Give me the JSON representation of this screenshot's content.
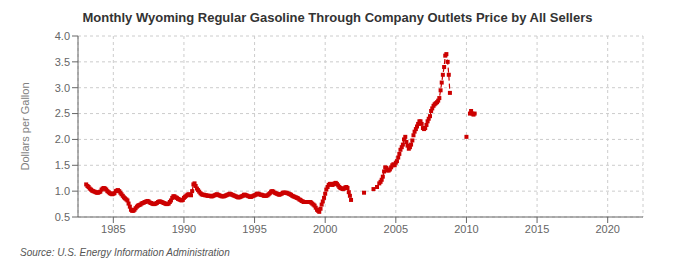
{
  "chart_data": {
    "type": "line",
    "title": "Monthly Wyoming Regular Gasoline Through Company Outlets Price by All Sellers",
    "y_label": "Dollars per Gallon",
    "annotations": [
      "Source: U.S. Energy Information Administration"
    ],
    "color": "#CC0000",
    "line_style": "dashed",
    "marker": "square",
    "grid": true,
    "xlim": [
      1982.5,
      2022.5
    ],
    "xticks": [
      1985,
      1990,
      1995,
      2000,
      2005,
      2010,
      2015,
      2020
    ],
    "ylim": [
      0.5,
      4.0
    ],
    "yticks": [
      0.5,
      {
        "value": 1.0,
        "label": "1.0"
      },
      1.5,
      {
        "value": 2.0,
        "label": "2.0"
      },
      2.5,
      {
        "value": 3.0,
        "label": "3.0"
      },
      3.5,
      {
        "value": 4.0,
        "label": "4.0"
      }
    ],
    "x": [
      1983.08,
      1983.17,
      1983.25,
      1983.33,
      1983.42,
      1983.5,
      1983.58,
      1983.67,
      1983.75,
      1983.83,
      1983.92,
      1984.0,
      1984.08,
      1984.17,
      1984.25,
      1984.33,
      1984.42,
      1984.5,
      1984.58,
      1984.67,
      1984.75,
      1984.83,
      1984.92,
      1985.0,
      1985.08,
      1985.17,
      1985.25,
      1985.33,
      1985.42,
      1985.5,
      1985.58,
      1985.67,
      1985.75,
      1985.83,
      1985.92,
      1986.0,
      1986.08,
      1986.17,
      1986.25,
      1986.33,
      1986.42,
      1986.5,
      1986.58,
      1986.67,
      1986.75,
      1986.83,
      1986.92,
      1987.0,
      1987.08,
      1987.17,
      1987.25,
      1987.33,
      1987.42,
      1987.5,
      1987.58,
      1987.67,
      1987.75,
      1987.83,
      1987.92,
      1988.0,
      1988.08,
      1988.17,
      1988.25,
      1988.33,
      1988.42,
      1988.5,
      1988.58,
      1988.67,
      1988.75,
      1988.83,
      1988.92,
      1989.0,
      1989.08,
      1989.17,
      1989.25,
      1989.33,
      1989.42,
      1989.5,
      1989.58,
      1989.67,
      1989.75,
      1989.83,
      1989.92,
      1990.0,
      1990.08,
      1990.17,
      1990.25,
      1990.33,
      1990.42,
      1990.5,
      1990.58,
      1990.67,
      1990.75,
      1990.83,
      1990.92,
      1991.0,
      1991.08,
      1991.17,
      1991.25,
      1991.33,
      1991.42,
      1991.5,
      1991.58,
      1991.67,
      1991.75,
      1991.83,
      1991.92,
      1992.0,
      1992.08,
      1992.17,
      1992.25,
      1992.33,
      1992.42,
      1992.5,
      1992.58,
      1992.67,
      1992.75,
      1992.83,
      1992.92,
      1993.0,
      1993.08,
      1993.17,
      1993.25,
      1993.33,
      1993.42,
      1993.5,
      1993.58,
      1993.67,
      1993.75,
      1993.83,
      1993.92,
      1994.0,
      1994.08,
      1994.17,
      1994.25,
      1994.33,
      1994.42,
      1994.5,
      1994.58,
      1994.67,
      1994.75,
      1994.83,
      1994.92,
      1995.0,
      1995.08,
      1995.17,
      1995.25,
      1995.33,
      1995.42,
      1995.5,
      1995.58,
      1995.67,
      1995.75,
      1995.83,
      1995.92,
      1996.0,
      1996.08,
      1996.17,
      1996.25,
      1996.33,
      1996.42,
      1996.5,
      1996.58,
      1996.67,
      1996.75,
      1996.83,
      1996.92,
      1997.0,
      1997.08,
      1997.17,
      1997.25,
      1997.33,
      1997.42,
      1997.5,
      1997.58,
      1997.67,
      1997.75,
      1997.83,
      1997.92,
      1998.0,
      1998.08,
      1998.17,
      1998.25,
      1998.33,
      1998.42,
      1998.5,
      1998.58,
      1998.67,
      1998.75,
      1998.83,
      1998.92,
      1999.0,
      1999.08,
      1999.17,
      1999.25,
      1999.33,
      1999.42,
      1999.5,
      1999.58,
      1999.67,
      1999.75,
      1999.83,
      1999.92,
      2000.0,
      2000.08,
      2000.17,
      2000.25,
      2000.33,
      2000.42,
      2000.5,
      2000.58,
      2000.67,
      2000.75,
      2000.83,
      2000.92,
      2001.0,
      2001.08,
      2001.17,
      2001.25,
      2001.33,
      2001.42,
      2001.5,
      2001.58,
      2001.67,
      2001.75,
      2001.83,
      2001.92,
      2002.0,
      2002.08,
      2002.17,
      2002.25,
      2002.33,
      2002.42,
      2002.5,
      2002.58,
      2002.67,
      2002.75,
      2002.83,
      2002.92,
      2003.0,
      2003.08,
      2003.17,
      2003.25,
      2003.33,
      2003.42,
      2003.5,
      2003.58,
      2003.67,
      2003.75,
      2003.83,
      2003.92,
      2004.0,
      2004.08,
      2004.17,
      2004.25,
      2004.33,
      2004.42,
      2004.5,
      2004.58,
      2004.67,
      2004.75,
      2004.83,
      2004.92,
      2005.0,
      2005.08,
      2005.17,
      2005.25,
      2005.33,
      2005.42,
      2005.5,
      2005.58,
      2005.67,
      2005.75,
      2005.83,
      2005.92,
      2006.0,
      2006.08,
      2006.17,
      2006.25,
      2006.33,
      2006.42,
      2006.5,
      2006.58,
      2006.67,
      2006.75,
      2006.83,
      2006.92,
      2007.0,
      2007.08,
      2007.17,
      2007.25,
      2007.33,
      2007.42,
      2007.5,
      2007.58,
      2007.67,
      2007.75,
      2007.83,
      2007.92,
      2008.0,
      2008.08,
      2008.17,
      2008.25,
      2008.33,
      2008.42,
      2008.5,
      2008.58,
      2008.67,
      2008.75,
      2008.83,
      2008.92,
      2009.0,
      2009.08,
      2009.17,
      2009.25,
      2009.33,
      2009.42,
      2009.5,
      2009.58,
      2009.67,
      2009.75,
      2009.83,
      2009.92,
      2010.0,
      2010.08,
      2010.17,
      2010.25,
      2010.33,
      2010.42,
      2010.5,
      2010.58,
      2010.67,
      2010.75,
      2010.83,
      2010.92,
      2011.0,
      2011.08,
      2011.17,
      2011.25,
      2011.33,
      2011.42,
      2011.5,
      2011.58,
      2011.67,
      2011.75,
      2011.83,
      2011.92
    ],
    "values": [
      1.13,
      1.1,
      1.08,
      1.05,
      1.03,
      1.01,
      1.0,
      0.99,
      0.98,
      0.97,
      0.97,
      0.98,
      0.99,
      1.03,
      1.05,
      1.06,
      1.05,
      1.03,
      1.0,
      0.98,
      0.96,
      0.95,
      0.94,
      0.95,
      0.96,
      1.0,
      1.01,
      1.02,
      1.0,
      0.97,
      0.94,
      0.91,
      0.88,
      0.86,
      0.84,
      0.82,
      0.76,
      0.7,
      0.64,
      0.62,
      0.62,
      0.64,
      0.67,
      0.7,
      0.72,
      0.73,
      0.74,
      0.76,
      0.77,
      0.78,
      0.79,
      0.8,
      0.81,
      0.8,
      0.78,
      0.77,
      0.76,
      0.75,
      0.75,
      0.76,
      0.77,
      0.79,
      0.8,
      0.8,
      0.79,
      0.78,
      0.77,
      0.76,
      0.75,
      0.75,
      0.76,
      0.79,
      0.82,
      0.87,
      0.9,
      0.9,
      0.88,
      0.87,
      0.85,
      0.84,
      0.83,
      0.82,
      0.83,
      0.87,
      0.89,
      0.91,
      0.93,
      0.94,
      0.93,
      0.92,
      1.0,
      1.13,
      1.15,
      1.1,
      1.05,
      1.02,
      0.99,
      0.96,
      0.94,
      0.93,
      0.93,
      0.92,
      0.92,
      0.91,
      0.91,
      0.91,
      0.9,
      0.9,
      0.91,
      0.92,
      0.93,
      0.94,
      0.93,
      0.92,
      0.91,
      0.9,
      0.9,
      0.9,
      0.91,
      0.92,
      0.93,
      0.94,
      0.95,
      0.94,
      0.93,
      0.92,
      0.91,
      0.9,
      0.89,
      0.88,
      0.88,
      0.89,
      0.9,
      0.91,
      0.93,
      0.93,
      0.92,
      0.91,
      0.9,
      0.89,
      0.89,
      0.9,
      0.91,
      0.92,
      0.93,
      0.95,
      0.95,
      0.94,
      0.93,
      0.93,
      0.92,
      0.91,
      0.91,
      0.91,
      0.92,
      0.94,
      0.96,
      0.99,
      1.0,
      0.99,
      0.97,
      0.96,
      0.95,
      0.94,
      0.93,
      0.94,
      0.95,
      0.97,
      0.97,
      0.97,
      0.97,
      0.96,
      0.95,
      0.94,
      0.93,
      0.91,
      0.9,
      0.89,
      0.88,
      0.87,
      0.86,
      0.84,
      0.83,
      0.81,
      0.8,
      0.79,
      0.79,
      0.79,
      0.79,
      0.79,
      0.79,
      0.78,
      0.76,
      0.74,
      0.72,
      0.68,
      0.64,
      0.62,
      0.6,
      0.66,
      0.74,
      0.8,
      0.87,
      0.95,
      1.03,
      1.08,
      1.12,
      1.14,
      1.14,
      1.12,
      1.13,
      1.15,
      1.16,
      1.14,
      1.11,
      1.08,
      1.06,
      1.05,
      1.04,
      1.05,
      1.07,
      1.08,
      1.06,
      0.98,
      0.91,
      0.83,
      null,
      null,
      null,
      null,
      null,
      null,
      null,
      null,
      null,
      null,
      0.97,
      null,
      null,
      null,
      null,
      null,
      null,
      null,
      1.04,
      null,
      null,
      1.08,
      null,
      1.15,
      1.18,
      1.22,
      1.28,
      1.38,
      1.46,
      1.45,
      1.4,
      1.4,
      1.42,
      1.46,
      1.5,
      1.52,
      1.5,
      1.55,
      1.58,
      1.65,
      1.72,
      1.8,
      1.85,
      1.9,
      2.0,
      2.05,
      1.95,
      1.88,
      1.82,
      1.85,
      1.9,
      1.98,
      2.08,
      2.15,
      2.2,
      2.25,
      2.3,
      2.35,
      2.35,
      2.3,
      2.22,
      2.2,
      2.22,
      2.28,
      2.35,
      2.4,
      2.45,
      2.55,
      2.6,
      2.65,
      2.68,
      2.7,
      2.72,
      2.75,
      2.8,
      2.95,
      3.1,
      3.25,
      3.4,
      3.62,
      3.65,
      3.5,
      3.25,
      2.9,
      null,
      null,
      null,
      null,
      null,
      null,
      null,
      null,
      null,
      null,
      null,
      null,
      null,
      2.05,
      null,
      null,
      2.5,
      2.55,
      2.5,
      2.48,
      2.5,
      null,
      null,
      null,
      null,
      null,
      null,
      null,
      null,
      null,
      null,
      null,
      null,
      null,
      null,
      null,
      null
    ]
  }
}
